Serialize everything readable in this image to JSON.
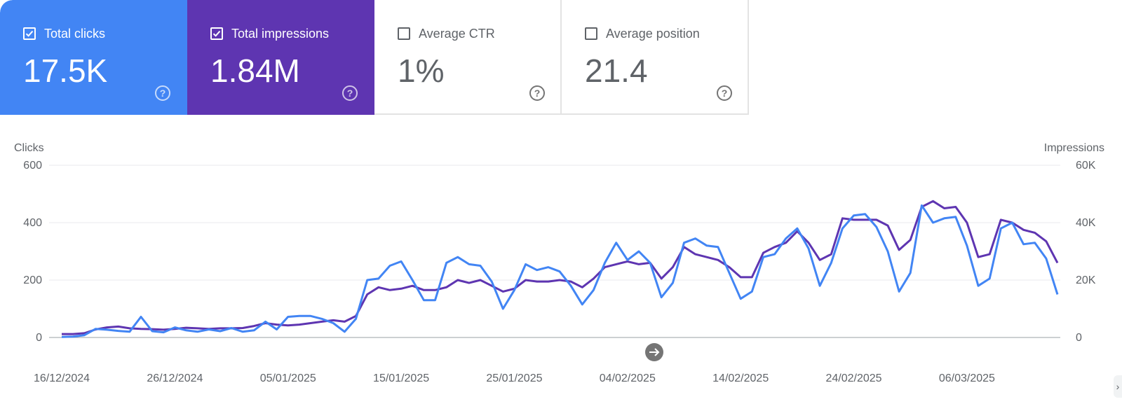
{
  "cards": [
    {
      "label": "Total clicks",
      "value": "17.5K",
      "checked": true
    },
    {
      "label": "Total impressions",
      "value": "1.84M",
      "checked": true
    },
    {
      "label": "Average CTR",
      "value": "1%",
      "checked": false
    },
    {
      "label": "Average position",
      "value": "21.4",
      "checked": false
    }
  ],
  "colors": {
    "clicks": "#4285f4",
    "impressions": "#5e35b1",
    "grid": "#e8eaed",
    "axis": "#9aa0a6"
  },
  "chart_data": {
    "type": "line",
    "title": "",
    "ylabel_left": "Clicks",
    "ylabel_right": "Impressions",
    "ylim_left": [
      0,
      600
    ],
    "ylim_right": [
      0,
      60000
    ],
    "yticks_left": [
      "0",
      "200",
      "400",
      "600"
    ],
    "yticks_right": [
      "0",
      "20K",
      "40K",
      "60K"
    ],
    "x_tick_labels": [
      "16/12/2024",
      "26/12/2024",
      "05/01/2025",
      "15/01/2025",
      "25/01/2025",
      "04/02/2025",
      "14/02/2025",
      "24/02/2025",
      "06/03/2025"
    ],
    "x_tick_indices": [
      0,
      10,
      20,
      30,
      40,
      50,
      60,
      70,
      80
    ],
    "series": [
      {
        "name": "Clicks",
        "axis": "left",
        "color": "#4285f4",
        "values": [
          2,
          3,
          8,
          30,
          27,
          23,
          20,
          72,
          22,
          18,
          35,
          25,
          20,
          28,
          22,
          33,
          20,
          25,
          55,
          28,
          72,
          75,
          75,
          65,
          50,
          20,
          65,
          200,
          205,
          250,
          265,
          200,
          130,
          130,
          260,
          280,
          255,
          250,
          195,
          100,
          165,
          255,
          235,
          245,
          230,
          180,
          115,
          165,
          260,
          330,
          270,
          300,
          260,
          140,
          190,
          330,
          345,
          320,
          315,
          225,
          135,
          160,
          280,
          290,
          345,
          380,
          310,
          180,
          260,
          380,
          425,
          430,
          385,
          300,
          160,
          225,
          460,
          400,
          415,
          420,
          320,
          180,
          205,
          380,
          400,
          325,
          330,
          275,
          150
        ]
      },
      {
        "name": "Impressions",
        "axis": "right",
        "color": "#5e35b1",
        "values": [
          1200,
          1200,
          1500,
          2800,
          3500,
          3800,
          3200,
          3000,
          2900,
          2700,
          3000,
          3400,
          3200,
          3000,
          3200,
          3200,
          3300,
          4000,
          5000,
          4500,
          4200,
          4500,
          5000,
          5500,
          6000,
          5500,
          7500,
          15000,
          17500,
          16500,
          17000,
          18000,
          16500,
          16500,
          17500,
          20000,
          19000,
          20000,
          18000,
          16000,
          17000,
          20000,
          19500,
          19500,
          20000,
          19500,
          17500,
          20500,
          24500,
          25500,
          26500,
          25500,
          26000,
          20500,
          24500,
          31500,
          29000,
          28000,
          27000,
          24500,
          21000,
          21000,
          29500,
          31500,
          33000,
          37000,
          33000,
          27000,
          29000,
          41500,
          41000,
          41000,
          41000,
          39000,
          30500,
          34000,
          45500,
          47500,
          45000,
          45500,
          40000,
          28000,
          29000,
          41000,
          40000,
          37500,
          36500,
          33500,
          26000
        ]
      }
    ]
  }
}
